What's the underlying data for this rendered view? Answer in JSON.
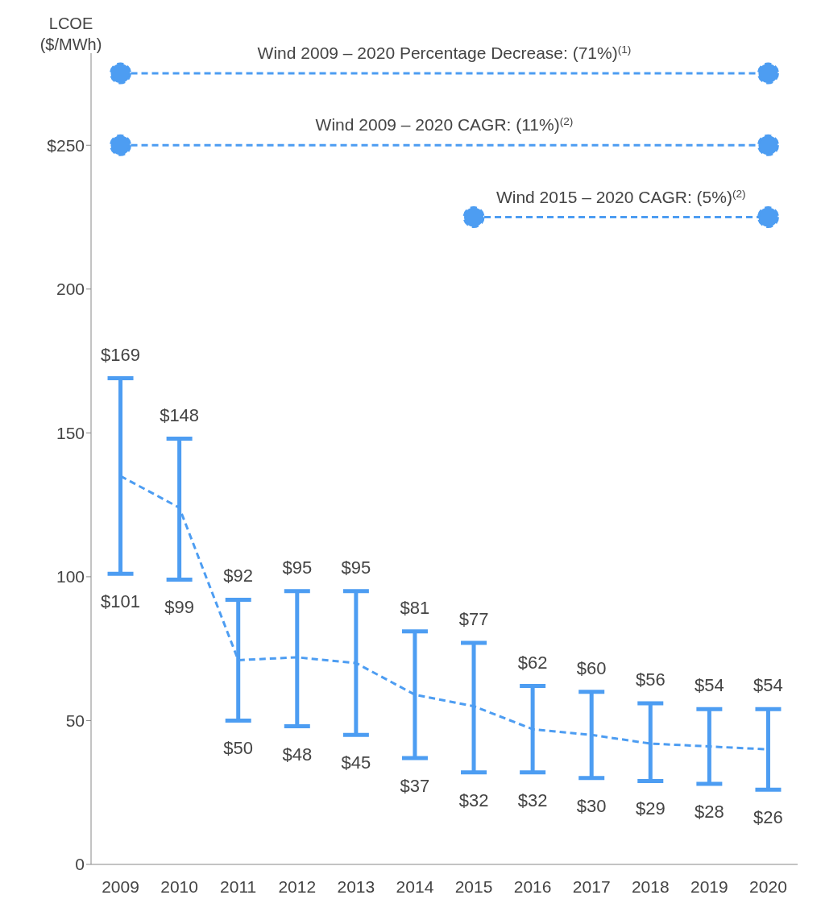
{
  "chart_data": {
    "type": "line",
    "ylabel": "LCOE ($/MWh)",
    "categories": [
      "2009",
      "2010",
      "2011",
      "2012",
      "2013",
      "2014",
      "2015",
      "2016",
      "2017",
      "2018",
      "2019",
      "2020"
    ],
    "series": [
      {
        "color": "#4d9df2",
        "line_style": "dashed",
        "marker": "none",
        "values": [
          135,
          124,
          71,
          72,
          70,
          59,
          55,
          47,
          45,
          42,
          41,
          40
        ],
        "errors": [
          [
            101,
            169
          ],
          [
            99,
            148
          ],
          [
            50,
            92
          ],
          [
            48,
            95
          ],
          [
            45,
            95
          ],
          [
            37,
            81
          ],
          [
            32,
            77
          ],
          [
            32,
            62
          ],
          [
            30,
            60
          ],
          [
            29,
            56
          ],
          [
            28,
            54
          ],
          [
            26,
            54
          ]
        ]
      },
      {
        "type": "line",
        "name": "Wind 2009 – 2020 Percentage Decrease: (71%)$^{(1)}$",
        "color": "#4d9df2",
        "line_style": "dashed",
        "marker": "circle",
        "values": [
          275,
          null,
          null,
          null,
          null,
          null,
          null,
          null,
          null,
          null,
          null,
          275
        ]
      },
      {
        "type": "line",
        "name": "Wind 2009 – 2020 CAGR: (11%)$^{(2)}$",
        "color": "#4d9df2",
        "line_style": "dashed",
        "marker": "circle",
        "values": [
          250,
          null,
          null,
          null,
          null,
          null,
          null,
          null,
          null,
          null,
          null,
          250
        ]
      },
      {
        "type": "line",
        "name": "Wind 2015 – 2020 CAGR: (5%)$^{(2)}$",
        "color": "#4d9df2",
        "line_style": "dashed",
        "marker": "circle",
        "values": [
          null,
          null,
          null,
          null,
          null,
          null,
          225,
          null,
          null,
          null,
          null,
          225
        ]
      }
    ],
    "ylim": [
      0,
      282
    ],
    "yticks": [
      0,
      50,
      100,
      150,
      200,
      {
        "value": 250,
        "label": "$250"
      }
    ],
    "grid": false,
    "legend": false,
    "annotations": [
      {
        "text": "$169",
        "x": "2009",
        "y": 169
      },
      {
        "text": "$101",
        "x": "2009",
        "y": 101
      },
      {
        "text": "$148",
        "x": "2010",
        "y": 148
      },
      {
        "text": "$99",
        "x": "2010",
        "y": 99
      },
      {
        "text": "$92",
        "x": "2011",
        "y": 92
      },
      {
        "text": "$50",
        "x": "2011",
        "y": 50
      },
      {
        "text": "$95",
        "x": "2012",
        "y": 95
      },
      {
        "text": "$48",
        "x": "2012",
        "y": 48
      },
      {
        "text": "$95",
        "x": "2013",
        "y": 95
      },
      {
        "text": "$45",
        "x": "2013",
        "y": 45
      },
      {
        "text": "$81",
        "x": "2014",
        "y": 81
      },
      {
        "text": "$37",
        "x": "2014",
        "y": 37
      },
      {
        "text": "$77",
        "x": "2015",
        "y": 77
      },
      {
        "text": "$32",
        "x": "2015",
        "y": 32
      },
      {
        "text": "$62",
        "x": "2016",
        "y": 62
      },
      {
        "text": "$32",
        "x": "2016",
        "y": 32
      },
      {
        "text": "$60",
        "x": "2017",
        "y": 60
      },
      {
        "text": "$30",
        "x": "2017",
        "y": 30
      },
      {
        "text": "$56",
        "x": "2018",
        "y": 56
      },
      {
        "text": "$29",
        "x": "2018",
        "y": 29
      },
      {
        "text": "$54",
        "x": "2019",
        "y": 54
      },
      {
        "text": "$28",
        "x": "2019",
        "y": 28
      },
      {
        "text": "$54",
        "x": "2020",
        "y": 54
      },
      {
        "text": "$26",
        "x": "2020",
        "y": 26
      }
    ]
  }
}
